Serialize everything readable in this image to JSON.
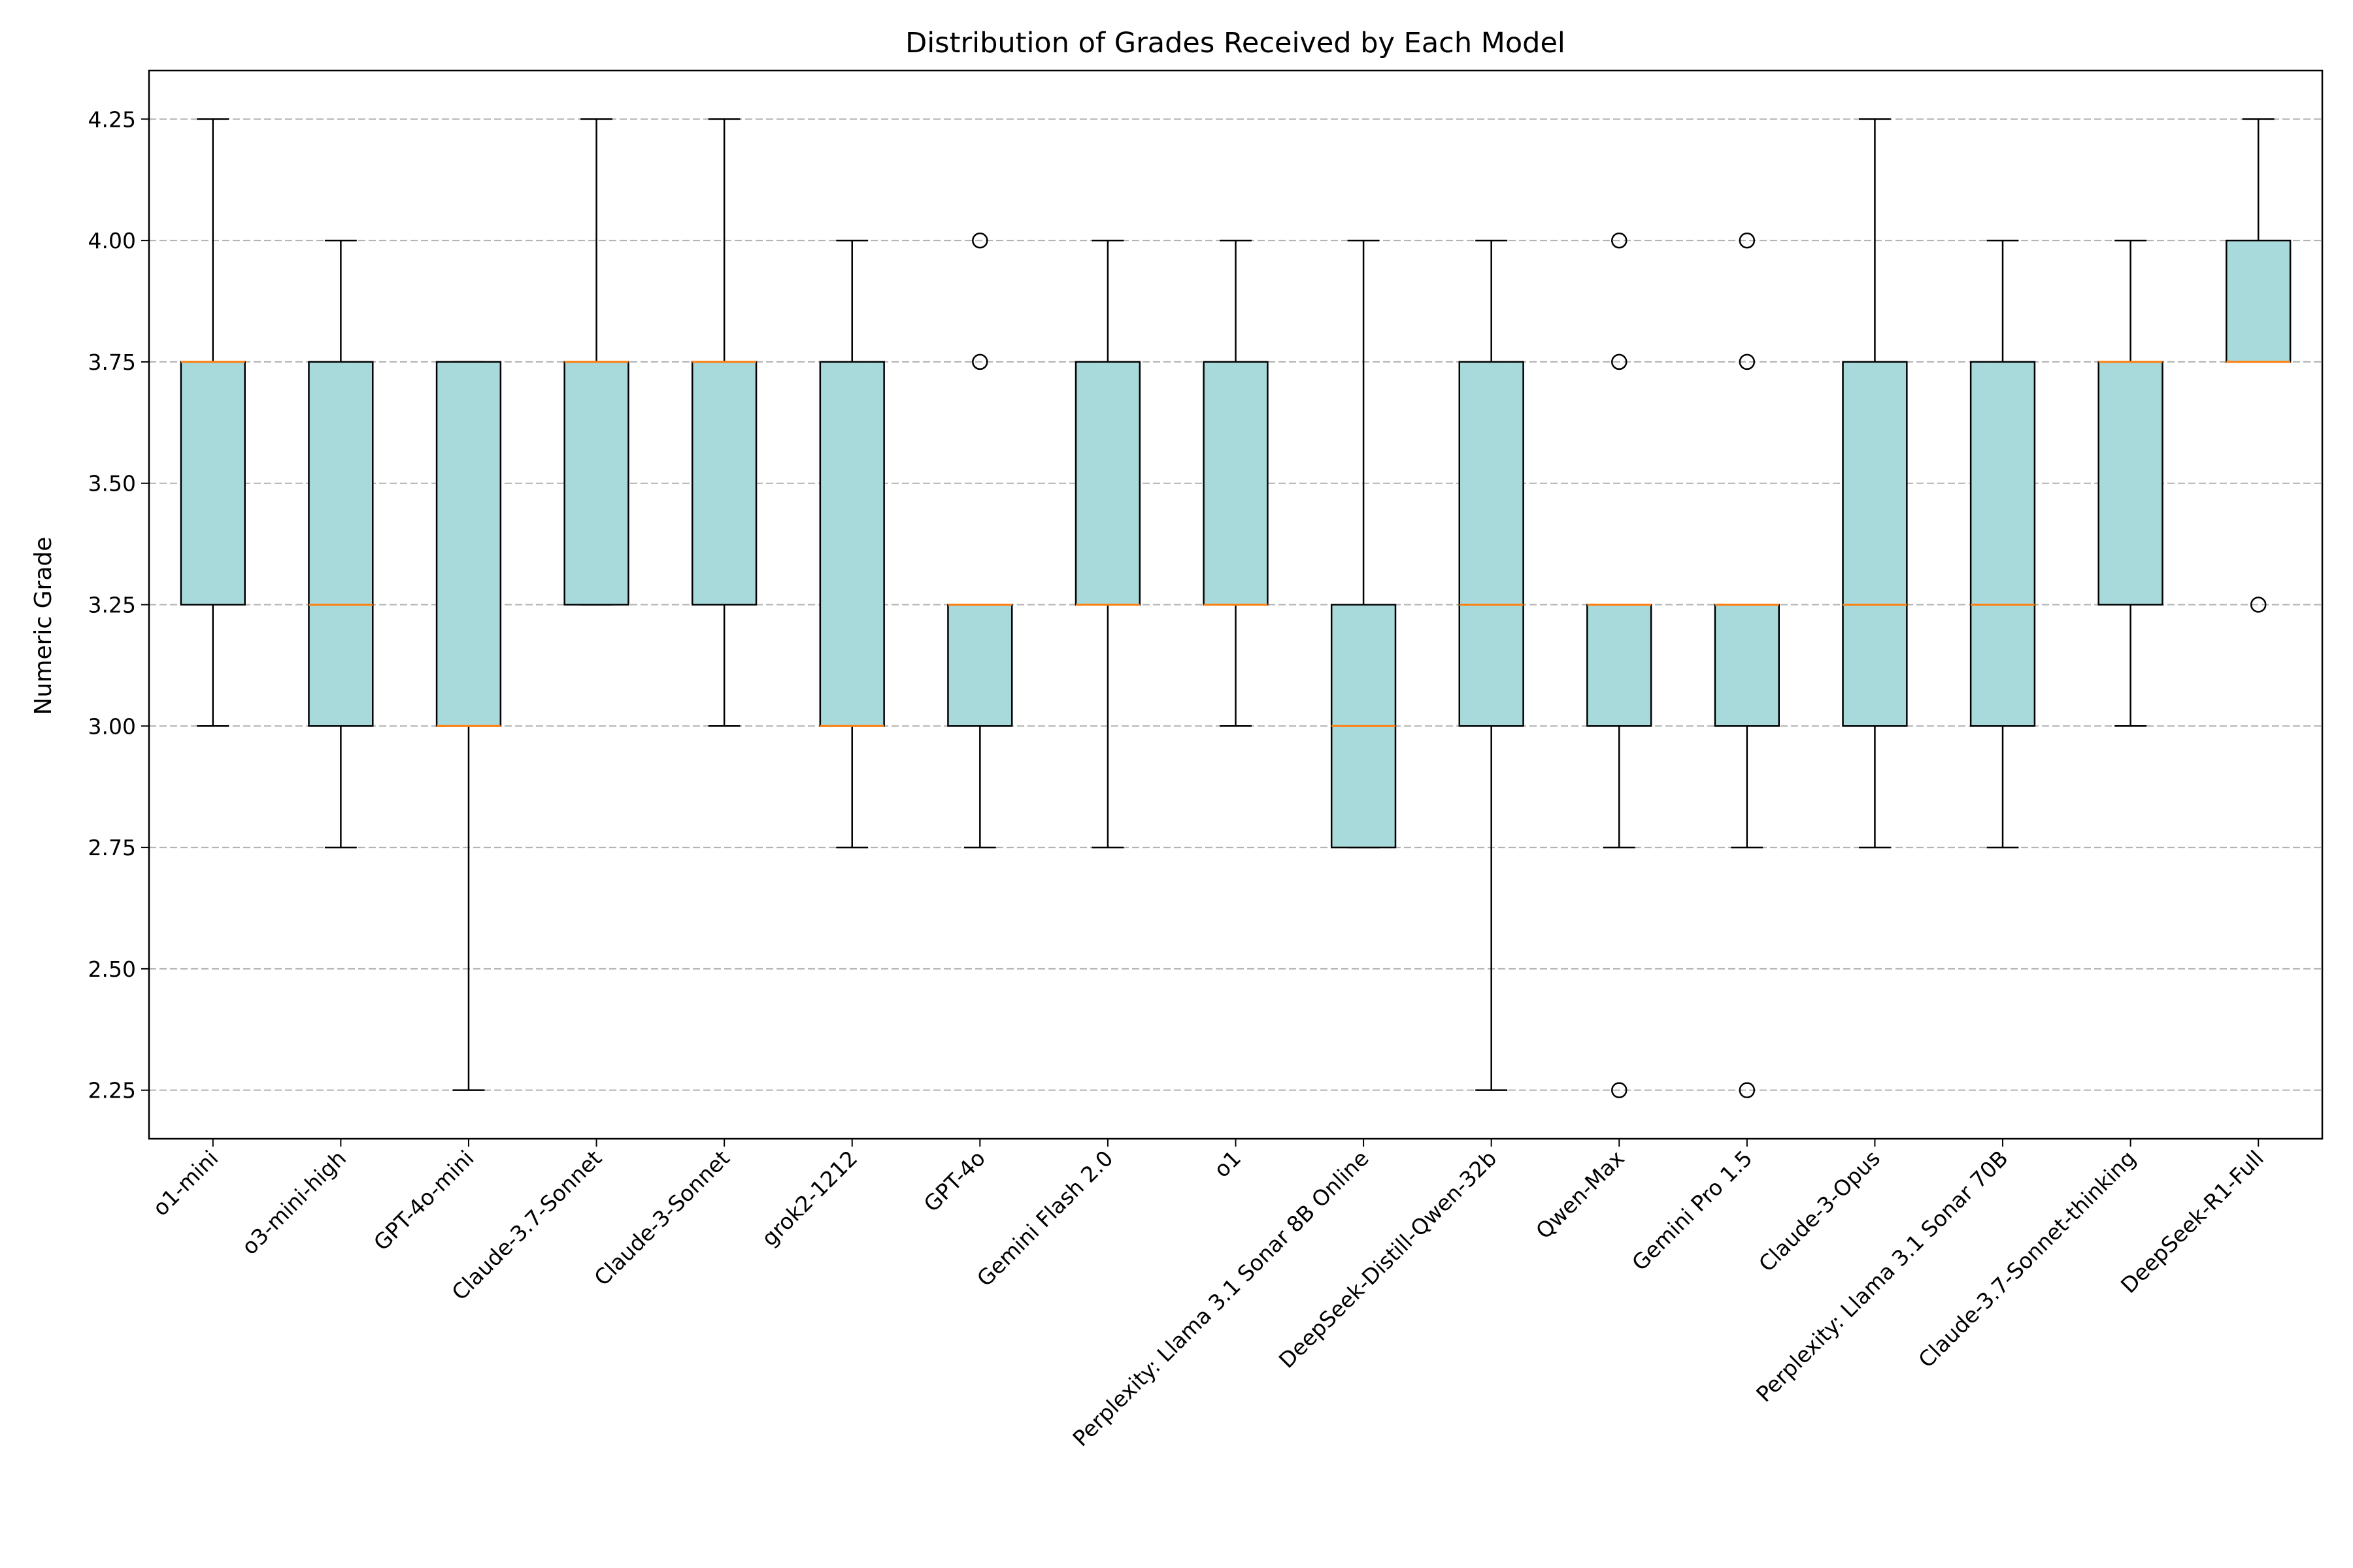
{
  "chart_data": {
    "type": "box",
    "title": "Distribution of Grades Received by Each Model",
    "xlabel": "",
    "ylabel": "Numeric Grade",
    "ylim": [
      2.15,
      4.35
    ],
    "yticks": [
      2.25,
      2.5,
      2.75,
      3.0,
      3.25,
      3.5,
      3.75,
      4.0,
      4.25
    ],
    "ytick_labels": [
      "2.25",
      "2.50",
      "2.75",
      "3.00",
      "3.25",
      "3.50",
      "3.75",
      "4.00",
      "4.25"
    ],
    "grid": "y-dashed",
    "box_color": "#a8dadc",
    "median_color": "#ff7f0e",
    "categories": [
      "o1-mini",
      "o3-mini-high",
      "GPT-4o-mini",
      "Claude-3.7-Sonnet",
      "Claude-3-Sonnet",
      "grok2-1212",
      "GPT-4o",
      "Gemini Flash 2.0",
      "o1",
      "Perplexity: Llama 3.1 Sonar 8B Online",
      "DeepSeek-Distill-Qwen-32b",
      "Qwen-Max",
      "Gemini Pro 1.5",
      "Claude-3-Opus",
      "Perplexity: Llama 3.1 Sonar 70B",
      "Claude-3.7-Sonnet-thinking",
      "DeepSeek-R1-Full"
    ],
    "boxes": [
      {
        "whisker_low": 3.0,
        "q1": 3.25,
        "median": 3.75,
        "q3": 3.75,
        "whisker_high": 4.25,
        "outliers": []
      },
      {
        "whisker_low": 2.75,
        "q1": 3.0,
        "median": 3.25,
        "q3": 3.75,
        "whisker_high": 4.0,
        "outliers": []
      },
      {
        "whisker_low": 2.25,
        "q1": 3.0,
        "median": 3.0,
        "q3": 3.75,
        "whisker_high": 3.75,
        "outliers": []
      },
      {
        "whisker_low": 3.25,
        "q1": 3.25,
        "median": 3.75,
        "q3": 3.75,
        "whisker_high": 4.25,
        "outliers": []
      },
      {
        "whisker_low": 3.0,
        "q1": 3.25,
        "median": 3.75,
        "q3": 3.75,
        "whisker_high": 4.25,
        "outliers": []
      },
      {
        "whisker_low": 2.75,
        "q1": 3.0,
        "median": 3.0,
        "q3": 3.75,
        "whisker_high": 4.0,
        "outliers": []
      },
      {
        "whisker_low": 2.75,
        "q1": 3.0,
        "median": 3.25,
        "q3": 3.25,
        "whisker_high": 3.25,
        "outliers": [
          3.75,
          4.0
        ]
      },
      {
        "whisker_low": 2.75,
        "q1": 3.25,
        "median": 3.25,
        "q3": 3.75,
        "whisker_high": 4.0,
        "outliers": []
      },
      {
        "whisker_low": 3.0,
        "q1": 3.25,
        "median": 3.25,
        "q3": 3.75,
        "whisker_high": 4.0,
        "outliers": []
      },
      {
        "whisker_low": 2.75,
        "q1": 2.75,
        "median": 3.0,
        "q3": 3.25,
        "whisker_high": 4.0,
        "outliers": []
      },
      {
        "whisker_low": 2.25,
        "q1": 3.0,
        "median": 3.25,
        "q3": 3.75,
        "whisker_high": 4.0,
        "outliers": []
      },
      {
        "whisker_low": 2.75,
        "q1": 3.0,
        "median": 3.25,
        "q3": 3.25,
        "whisker_high": 3.25,
        "outliers": [
          2.25,
          3.75,
          4.0
        ]
      },
      {
        "whisker_low": 2.75,
        "q1": 3.0,
        "median": 3.25,
        "q3": 3.25,
        "whisker_high": 3.25,
        "outliers": [
          2.25,
          3.75,
          4.0
        ]
      },
      {
        "whisker_low": 2.75,
        "q1": 3.0,
        "median": 3.25,
        "q3": 3.75,
        "whisker_high": 4.25,
        "outliers": []
      },
      {
        "whisker_low": 2.75,
        "q1": 3.0,
        "median": 3.25,
        "q3": 3.75,
        "whisker_high": 4.0,
        "outliers": []
      },
      {
        "whisker_low": 3.0,
        "q1": 3.25,
        "median": 3.75,
        "q3": 3.75,
        "whisker_high": 4.0,
        "outliers": []
      },
      {
        "whisker_low": 3.75,
        "q1": 3.75,
        "median": 3.75,
        "q3": 4.0,
        "whisker_high": 4.25,
        "outliers": [
          3.25
        ]
      }
    ]
  }
}
